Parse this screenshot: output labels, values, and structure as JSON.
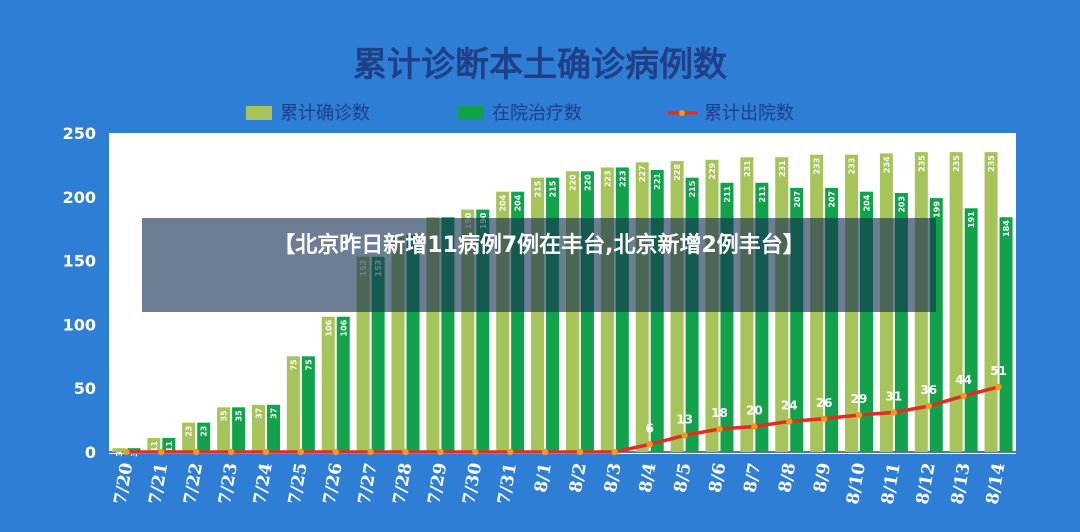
{
  "colors": {
    "background": "#2f7ed6",
    "plot_bg": "#ffffff",
    "title": "#1f3f86",
    "total_bar": "#a6c45a",
    "treatment_bar": "#13a24c",
    "discharge_line": "#e22d22",
    "discharge_marker": "#f39a1b",
    "axis_text": "#1f3f86"
  },
  "banner": {
    "headline": "【北京昨日新增11病例7例在丰台,北京新增2例丰台】"
  },
  "chart_data": {
    "type": "bar",
    "title": "累计诊断本土确诊病例数",
    "categories": [
      "7/20",
      "7/21",
      "7/22",
      "7/23",
      "7/24",
      "7/25",
      "7/26",
      "7/27",
      "7/28",
      "7/29",
      "7/30",
      "7/31",
      "8/1",
      "8/2",
      "8/3",
      "8/4",
      "8/5",
      "8/6",
      "8/7",
      "8/8",
      "8/9",
      "8/10",
      "8/11",
      "8/12",
      "8/13",
      "8/14"
    ],
    "series": [
      {
        "name": "累计确诊数",
        "kind": "bar",
        "values": [
          3,
          11,
          23,
          35,
          37,
          75,
          106,
          153,
          170,
          184,
          190,
          204,
          215,
          220,
          223,
          227,
          228,
          229,
          231,
          231,
          233,
          233,
          234,
          235,
          235,
          235
        ],
        "labels": [
          "3",
          "11",
          "23",
          "35",
          "37",
          "75",
          "106",
          "153",
          "",
          "",
          "190",
          "204",
          "215",
          "220",
          "223",
          "227",
          "228",
          "229",
          "231",
          "231",
          "233",
          "233",
          "234",
          "235",
          "235",
          "235"
        ]
      },
      {
        "name": "在院治疗数",
        "kind": "bar",
        "values": [
          3,
          11,
          23,
          35,
          37,
          75,
          106,
          153,
          170,
          184,
          190,
          204,
          215,
          220,
          223,
          221,
          215,
          211,
          211,
          207,
          207,
          204,
          203,
          199,
          191,
          184
        ],
        "labels": [
          "3",
          "11",
          "23",
          "35",
          "37",
          "75",
          "106",
          "153",
          "",
          "",
          "190",
          "204",
          "215",
          "220",
          "223",
          "221",
          "215",
          "211",
          "211",
          "207",
          "207",
          "204",
          "203",
          "199",
          "191",
          "184"
        ]
      },
      {
        "name": "累计出院数",
        "kind": "line",
        "values": [
          0,
          0,
          0,
          0,
          0,
          0,
          0,
          0,
          0,
          0,
          0,
          0,
          0,
          0,
          0,
          6,
          13,
          18,
          20,
          24,
          26,
          29,
          31,
          36,
          44,
          51
        ],
        "labels": [
          "",
          "",
          "",
          "",
          "",
          "",
          "",
          "",
          "",
          "",
          "",
          "",
          "",
          "",
          "",
          "6",
          "13",
          "18",
          "20",
          "24",
          "26",
          "29",
          "31",
          "36",
          "44",
          "51"
        ]
      }
    ],
    "yticks": [
      "0",
      "50",
      "100",
      "150",
      "200",
      "250"
    ],
    "ylim": [
      0,
      250
    ],
    "grid": false,
    "legend": "top"
  }
}
